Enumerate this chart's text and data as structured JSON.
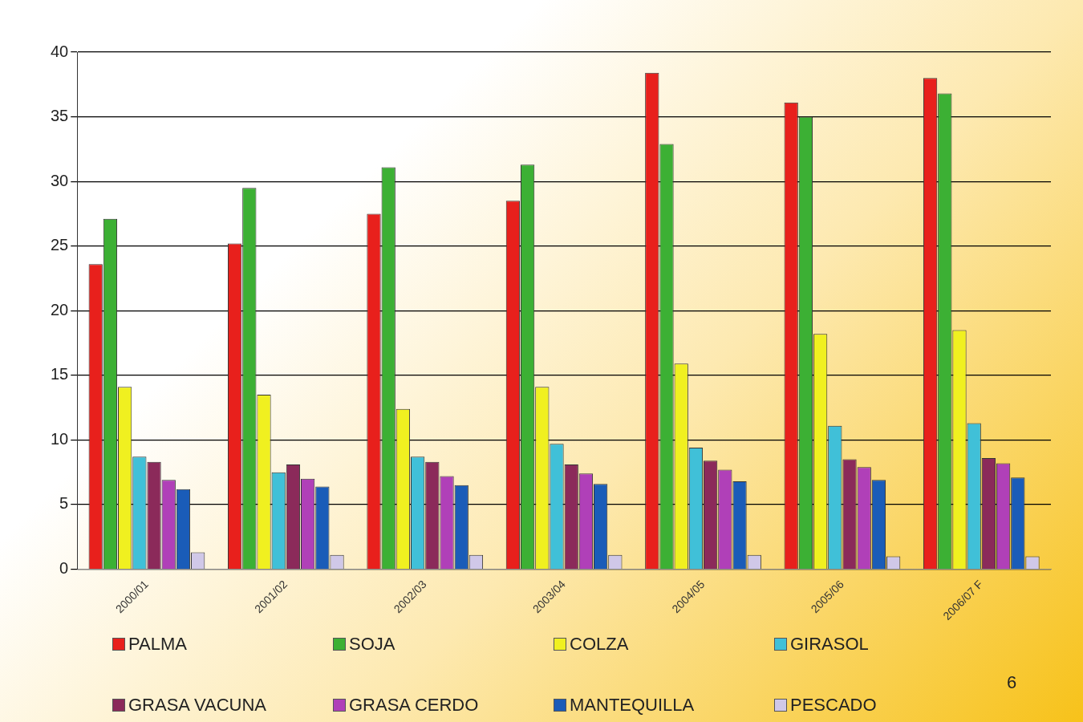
{
  "chart_data": {
    "type": "bar",
    "categories": [
      "2000/01",
      "2001/02",
      "2002/03",
      "2003/04",
      "2004/05",
      "2005/06",
      "2006/07 F"
    ],
    "series": [
      {
        "name": "PALMA",
        "color": "#e8201c",
        "values": [
          23.6,
          25.2,
          27.5,
          28.5,
          38.4,
          36.1,
          38.0
        ]
      },
      {
        "name": "SOJA",
        "color": "#3cb034",
        "values": [
          27.1,
          29.5,
          31.1,
          31.3,
          32.9,
          35.0,
          36.8
        ]
      },
      {
        "name": "COLZA",
        "color": "#f0f020",
        "values": [
          14.1,
          13.5,
          12.4,
          14.1,
          15.9,
          18.2,
          18.5
        ]
      },
      {
        "name": "GIRASOL",
        "color": "#40c0d8",
        "values": [
          8.7,
          7.5,
          8.7,
          9.7,
          9.4,
          11.1,
          11.3
        ]
      },
      {
        "name": "GRASA VACUNA",
        "color": "#8b2a5a",
        "values": [
          8.3,
          8.1,
          8.3,
          8.1,
          8.4,
          8.5,
          8.6
        ]
      },
      {
        "name": "GRASA CERDO",
        "color": "#b040b8",
        "values": [
          6.9,
          7.0,
          7.2,
          7.4,
          7.7,
          7.9,
          8.2
        ]
      },
      {
        "name": "MANTEQUILLA",
        "color": "#1a5cb8",
        "values": [
          6.2,
          6.4,
          6.5,
          6.6,
          6.8,
          6.9,
          7.1
        ]
      },
      {
        "name": "PESCADO",
        "color": "#d0c8e8",
        "values": [
          1.3,
          1.1,
          1.1,
          1.1,
          1.1,
          1.0,
          1.0
        ]
      }
    ],
    "ylim": [
      0,
      40
    ],
    "yticks": [
      0,
      5,
      10,
      15,
      20,
      25,
      30,
      35,
      40
    ],
    "grid": "y",
    "legend": "bottom",
    "annotations": [
      "6"
    ]
  }
}
